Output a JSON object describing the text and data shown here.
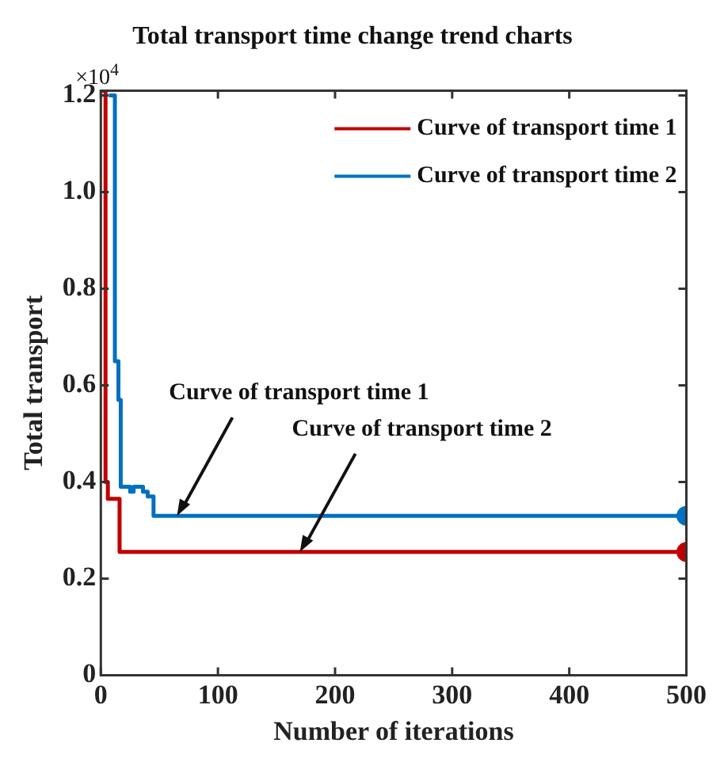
{
  "chart_data": {
    "type": "step",
    "title": "Total transport time change trend charts",
    "xlabel": "Number of iterations",
    "ylabel": "Total transport",
    "xlim": [
      0,
      500
    ],
    "xticks": [
      0,
      100,
      200,
      300,
      400,
      500
    ],
    "ylim": [
      0,
      1.21
    ],
    "yticks": [
      0,
      0.2,
      0.4,
      0.6,
      0.8,
      {
        "value": 1,
        "label": "1.0"
      },
      1.2
    ],
    "grid": false,
    "legend": "top right",
    "line_style": "solid",
    "annotations": [
      "×10$^{4}$",
      {
        "text": "Curve of transport time 1",
        "x": 65,
        "y": 0.33
      },
      {
        "text": "Curve of transport time 2",
        "x": 170,
        "y": 0.255
      }
    ],
    "series": [
      {
        "name": "Curve of transport time 1",
        "color": "#c00000",
        "x": [
          1,
          4,
          6,
          16,
          500
        ],
        "values": [
          1.21,
          0.4,
          0.365,
          0.255,
          0.255
        ]
      },
      {
        "name": "Curve of transport time 2",
        "color": "#0070c0",
        "x": [
          7,
          12,
          15,
          17,
          25,
          28,
          36,
          40,
          45,
          500
        ],
        "values": [
          1.2,
          0.65,
          0.57,
          0.39,
          0.38,
          0.39,
          0.38,
          0.37,
          0.33,
          0.33
        ]
      },
      {
        "type": "scatter",
        "color": "#c00000",
        "x": [
          500
        ],
        "values": [
          0.255
        ]
      },
      {
        "type": "scatter",
        "color": "#0070c0",
        "x": [
          500
        ],
        "values": [
          0.33
        ]
      }
    ]
  }
}
